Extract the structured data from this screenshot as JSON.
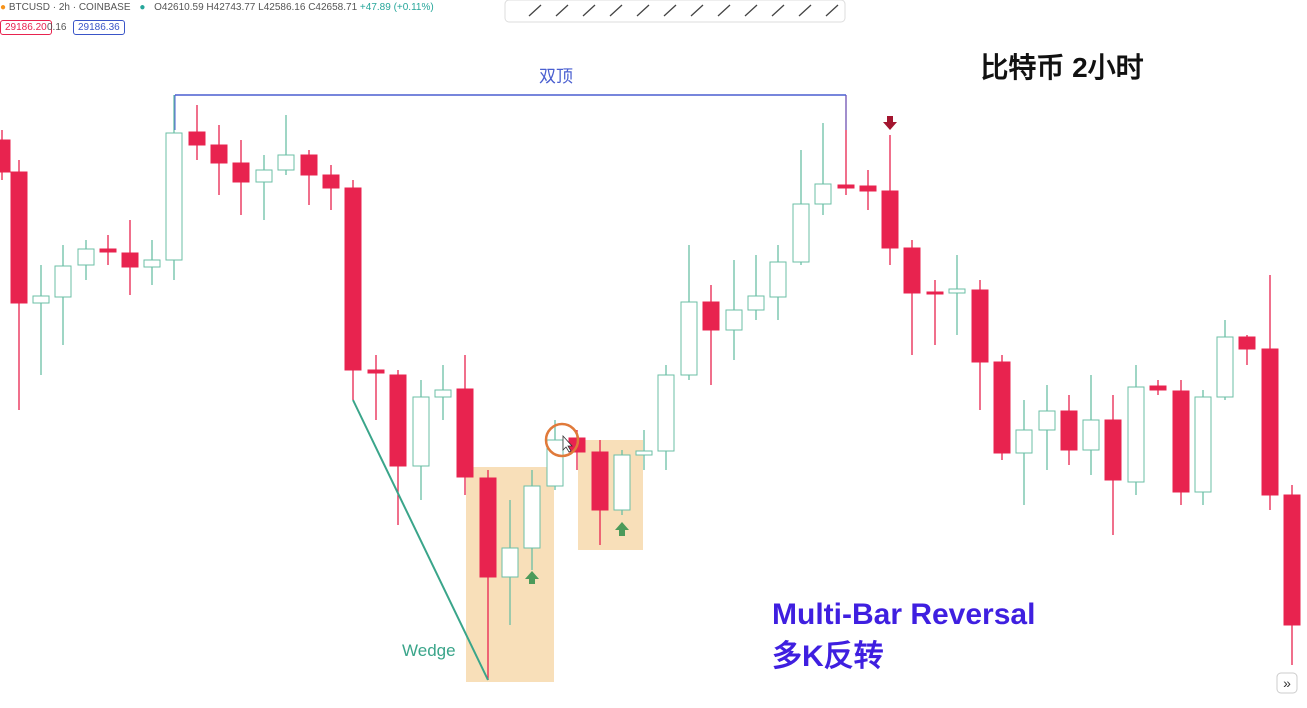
{
  "header": {
    "symbol": "BTCUSD · 2h · COINBASE",
    "open": "O42610.59",
    "high": "H42743.77",
    "low": "L42586.16",
    "close": "C42658.71",
    "change": "+47.89 (+0.11%)",
    "bid": "29186.20",
    "spread": "0.16",
    "ask": "29186.36"
  },
  "annotations": {
    "double_top": "双顶",
    "title": "比特币 2小时",
    "wedge": "Wedge",
    "pattern_en": "Multi-Bar Reversal",
    "pattern_cn": "多K反转"
  },
  "scroll_button": "»"
}
